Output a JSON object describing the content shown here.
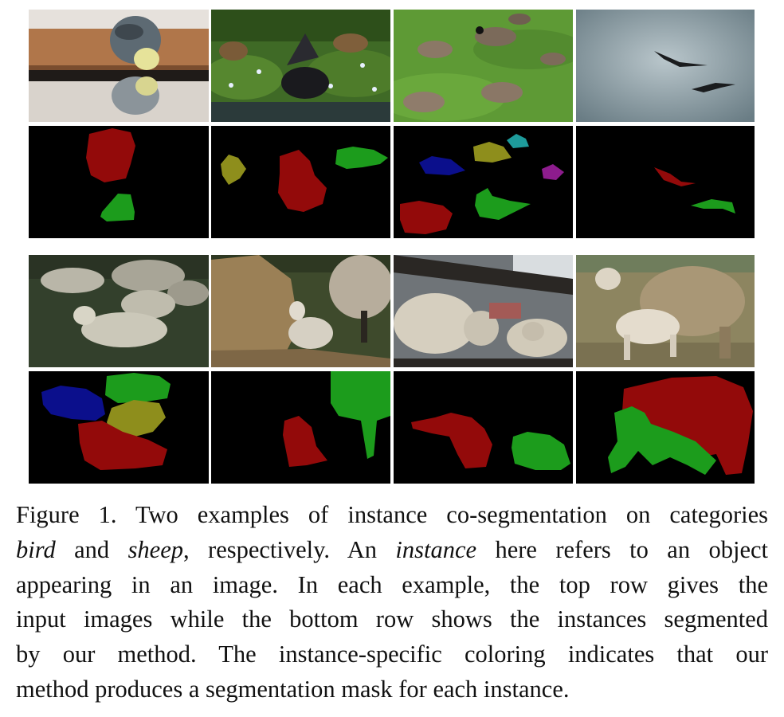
{
  "figure": {
    "examples": [
      {
        "category": "bird",
        "inputs": [
          "budgerigar-photo",
          "coot-and-ducks-photo",
          "geese-on-grass-photo",
          "flying-storks-photo"
        ],
        "masks": [
          {
            "instances": [
              "red",
              "green"
            ]
          },
          {
            "instances": [
              "olive",
              "red",
              "green"
            ]
          },
          {
            "instances": [
              "blue",
              "olive",
              "teal",
              "magenta",
              "red",
              "green"
            ]
          },
          {
            "instances": [
              "red",
              "green"
            ]
          }
        ]
      },
      {
        "category": "sheep",
        "inputs": [
          "lambs-lying-photo",
          "lamb-and-hay-photo",
          "sheep-behind-fence-photo",
          "ewe-and-lamb-photo"
        ],
        "masks": [
          {
            "instances": [
              "blue",
              "green",
              "olive",
              "red"
            ]
          },
          {
            "instances": [
              "green",
              "red"
            ]
          },
          {
            "instances": [
              "red",
              "green"
            ]
          },
          {
            "instances": [
              "red",
              "green"
            ]
          }
        ]
      }
    ],
    "mask_colors": {
      "red": "#930a0a",
      "green": "#1c9c1c",
      "blue": "#0b0f8c",
      "olive": "#8e8e1c",
      "teal": "#1e9b9b",
      "magenta": "#8d1c8d",
      "background": "#000000"
    }
  },
  "caption": {
    "l1": "Figure 1. Two examples of instance co-segmentation on categories",
    "l2_em1": "bird",
    "l2_and": " and ",
    "l2_em2": "sheep",
    "l2_mid": ", respectively.  An ",
    "l2_em3": "instance",
    "l2_end": " here refers to an object",
    "l3": "appearing in an image.  In each example, the top row gives the",
    "l4": "input images while the bottom row shows the instances segmented",
    "l5": "by our method.  The instance-specific coloring indicates that our",
    "l6": "method produces a segmentation mask for each instance."
  }
}
